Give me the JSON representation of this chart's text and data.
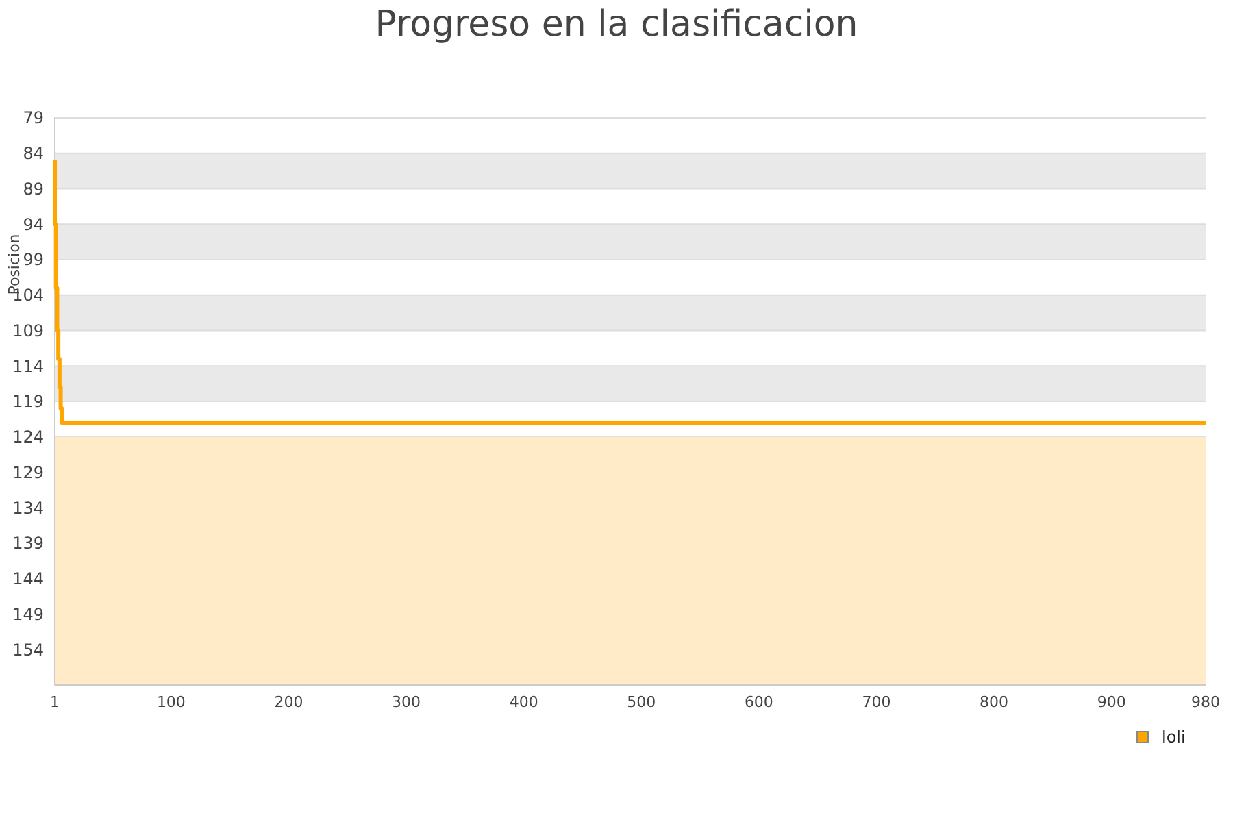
{
  "chart_data": {
    "type": "step",
    "title": "Progreso en la clasificacion",
    "ylabel": "Posicion",
    "x": [
      1,
      2,
      3,
      4,
      5,
      6,
      7,
      8,
      980
    ],
    "series": [
      {
        "name": "loli",
        "color": "#ffa500",
        "values": [
          85,
          94,
          103,
          109,
          113,
          117,
          120,
          122,
          122
        ]
      }
    ],
    "xlim": [
      1,
      980
    ],
    "xticks": [
      1,
      100,
      200,
      300,
      400,
      500,
      600,
      700,
      800,
      900,
      980
    ],
    "ylim": [
      159,
      79
    ],
    "yticks": [
      79,
      84,
      89,
      94,
      99,
      104,
      109,
      114,
      119,
      124,
      129,
      134,
      139,
      144,
      149,
      154
    ],
    "bands": [
      {
        "axis": "y",
        "from": 124,
        "to": 159,
        "color": "#ffebc8"
      }
    ],
    "grid": true,
    "legend": "bottom right",
    "line_style": "solid",
    "marker": "none"
  }
}
